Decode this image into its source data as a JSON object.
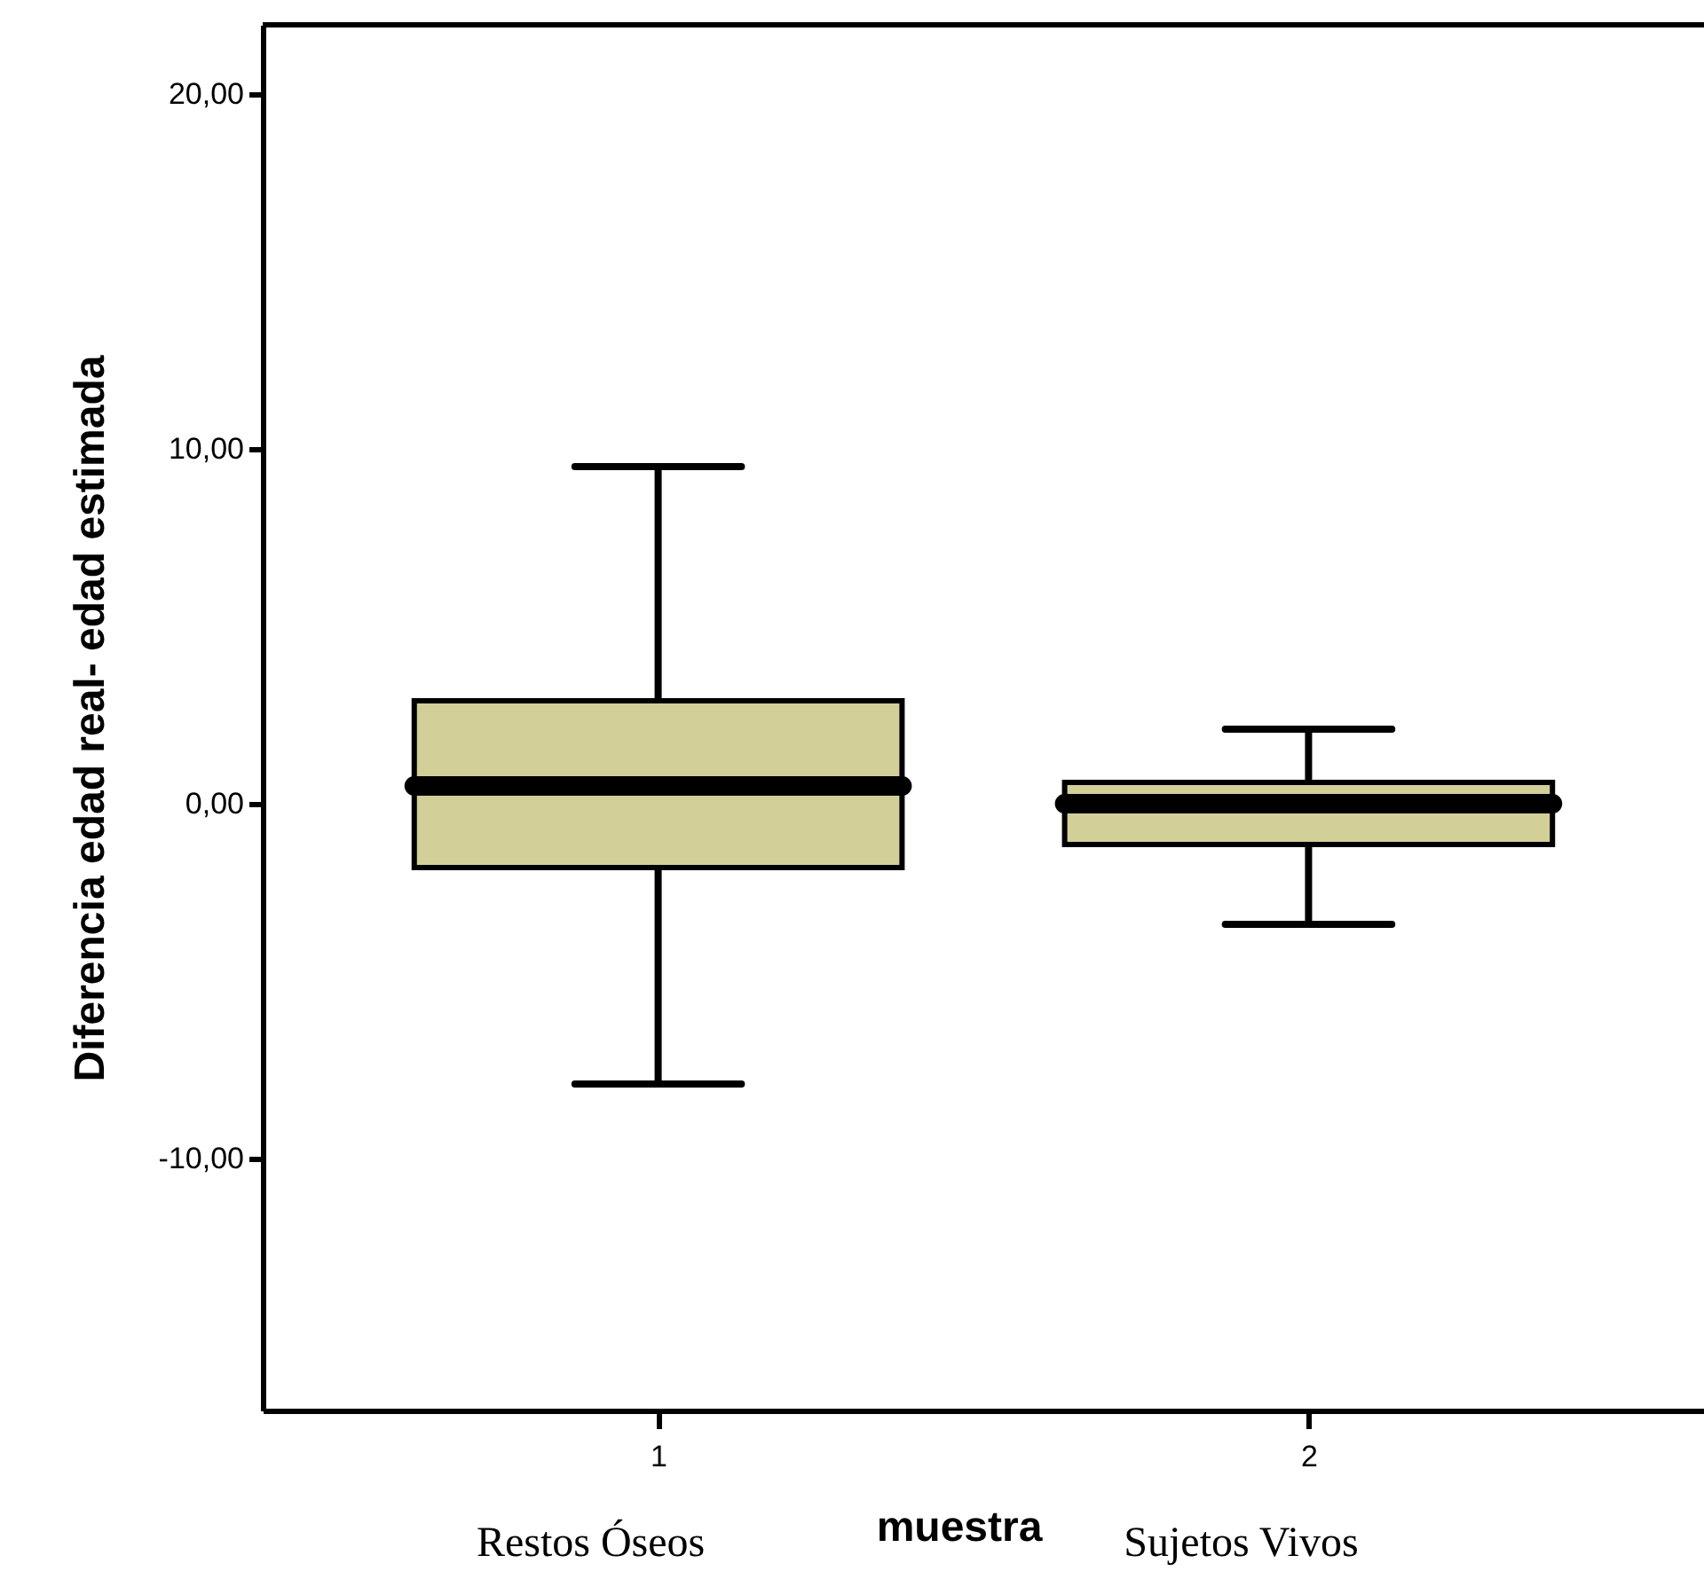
{
  "chart_data": {
    "type": "box",
    "xlabel": "muestra",
    "ylabel": "Diferencia edad real- edad estimada",
    "categories": [
      "1",
      "2"
    ],
    "boxes": [
      {
        "low": -7.9,
        "q1": -1.8,
        "median": 0.5,
        "q3": 2.9,
        "high": 9.5
      },
      {
        "low": -3.4,
        "q1": -1.15,
        "median": 0.0,
        "q3": 0.6,
        "high": 2.1
      }
    ],
    "color": "#d3cf99",
    "ylim": [
      -17.1,
      21.95
    ],
    "yticks": [
      {
        "value": -10,
        "label": "-10,00"
      },
      {
        "value": 0,
        "label": "0,00"
      },
      {
        "value": 10,
        "label": "10,00"
      },
      {
        "value": 20,
        "label": "20,00"
      }
    ],
    "annotations": [
      "Restos Óseos",
      "Sujetos Vivos"
    ],
    "grid": false
  }
}
